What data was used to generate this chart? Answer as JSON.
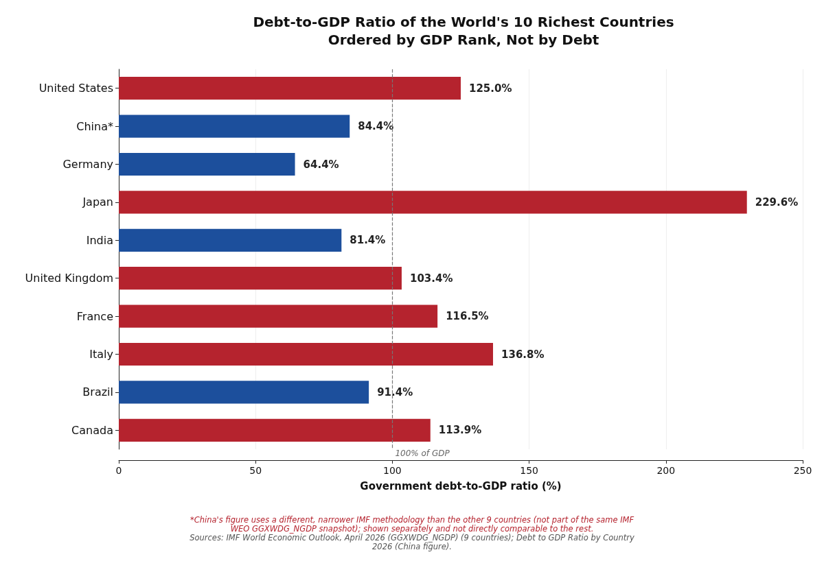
{
  "chart_data": {
    "type": "bar",
    "orientation": "horizontal",
    "title": "Debt-to-GDP Ratio of the World's 10 Richest Countries\nOrdered by GDP Rank, Not by Debt",
    "xlabel": "Government debt-to-GDP ratio (%)",
    "categories": [
      "United States",
      "China*",
      "Germany",
      "Japan",
      "India",
      "United Kingdom",
      "France",
      "Italy",
      "Brazil",
      "Canada"
    ],
    "values": [
      125.0,
      84.4,
      64.4,
      229.6,
      81.4,
      103.4,
      116.5,
      136.8,
      91.4,
      113.9
    ],
    "value_labels": [
      "125.0%",
      "84.4%",
      "64.4%",
      "229.6%",
      "81.4%",
      "103.4%",
      "116.5%",
      "136.8%",
      "91.4%",
      "113.9%"
    ],
    "colors": [
      "#b5232e",
      "#1c4f9c",
      "#1c4f9c",
      "#b5232e",
      "#1c4f9c",
      "#b5232e",
      "#b5232e",
      "#b5232e",
      "#1c4f9c",
      "#b5232e"
    ],
    "xlim": [
      0,
      250
    ],
    "xticks": [
      0,
      50,
      100,
      150,
      200,
      250
    ],
    "grid": "x",
    "ref_lines": [
      {
        "axis": "x",
        "value": 100,
        "label": "100% of GDP",
        "color": "#777777",
        "line_style": "dashed"
      }
    ],
    "annotations": [
      "*China's figure uses a different, narrower IMF methodology than the other 9 countries (not part of the same IMF WEO GGXWDG_NGDP snapshot); shown separately and not directly comparable to the rest.",
      "Sources: IMF World Economic Outlook, April 2026 (GGXWDG_NGDP) (9 countries); Debt to GDP Ratio by Country 2026 (China figure)."
    ]
  }
}
